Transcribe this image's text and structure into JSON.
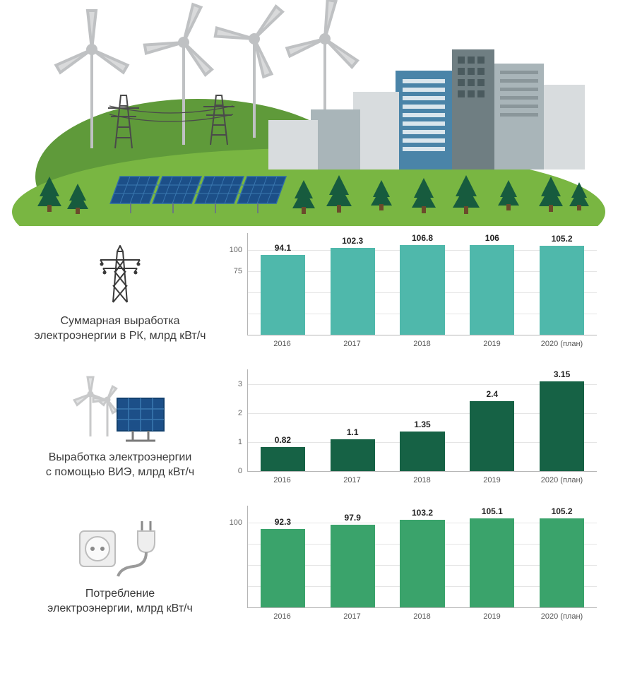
{
  "hero": {
    "ground_color": "#79b642",
    "hill_color": "#5f9a3a",
    "sky_color": "#ffffff",
    "tree_color": "#175b3e",
    "tree_trunk": "#6b4a2b",
    "turbine_color": "#d9dadb",
    "turbine_pole": "#bfc1c3",
    "pylon_color": "#4a4a4a",
    "panel_frame": "#2d6aa8",
    "panel_cell": "#1c4f88",
    "building_colors": {
      "light": "#d8dcde",
      "mid": "#a9b5b9",
      "dark": "#6f7e82",
      "blue": "#4a84a8",
      "teal": "#5a9aa0"
    }
  },
  "charts": [
    {
      "id": "total_generation",
      "icon": "pylon",
      "caption_line1": "Суммарная выработка",
      "caption_line2": "электроэнергии в РК, млрд кВт/ч",
      "type": "bar",
      "categories": [
        "2016",
        "2017",
        "2018",
        "2019",
        "2020 (план)"
      ],
      "values": [
        94.1,
        102.3,
        106.8,
        106,
        105.2
      ],
      "value_labels": [
        "94.1",
        "102.3",
        "106.8",
        "106",
        "105.2"
      ],
      "bar_color": "#4fb8ab",
      "ylim": [
        0,
        120
      ],
      "yticks": [
        0,
        25,
        50,
        75,
        100
      ],
      "ytick_labels": [
        "",
        "",
        "",
        "75",
        "100"
      ],
      "grid_color": "#e5e5e5",
      "axis_color": "#b5b5b5",
      "value_fontsize": 12,
      "xlabel_fontsize": 11
    },
    {
      "id": "renewable_generation",
      "icon": "renewable",
      "caption_line1": "Выработка электроэнергии",
      "caption_line2": "с помощью ВИЭ, млрд кВт/ч",
      "type": "bar",
      "categories": [
        "2016",
        "2017",
        "2018",
        "2019",
        "2020 (план)"
      ],
      "values": [
        0.82,
        1.1,
        1.35,
        2.4,
        3.15
      ],
      "value_labels": [
        "0.82",
        "1.1",
        "1.35",
        "2.4",
        "3.15"
      ],
      "bar_color": "#166245",
      "ylim": [
        0,
        3.5
      ],
      "yticks": [
        0,
        1,
        2,
        3
      ],
      "ytick_labels": [
        "0",
        "1",
        "2",
        "3"
      ],
      "grid_color": "#e5e5e5",
      "axis_color": "#b5b5b5",
      "value_fontsize": 12,
      "xlabel_fontsize": 11
    },
    {
      "id": "consumption",
      "icon": "plug",
      "caption_line1": "Потребление",
      "caption_line2": "электроэнергии, млрд кВт/ч",
      "type": "bar",
      "categories": [
        "2016",
        "2017",
        "2018",
        "2019",
        "2020 (план)"
      ],
      "values": [
        92.3,
        97.9,
        103.2,
        105.1,
        105.2
      ],
      "value_labels": [
        "92.3",
        "97.9",
        "103.2",
        "105.1",
        "105.2"
      ],
      "bar_color": "#3aa36b",
      "ylim": [
        0,
        120
      ],
      "yticks": [
        0,
        25,
        50,
        75,
        100
      ],
      "ytick_labels": [
        "",
        "",
        "",
        "",
        "100"
      ],
      "grid_color": "#e5e5e5",
      "axis_color": "#b5b5b5",
      "value_fontsize": 12,
      "xlabel_fontsize": 11
    }
  ]
}
